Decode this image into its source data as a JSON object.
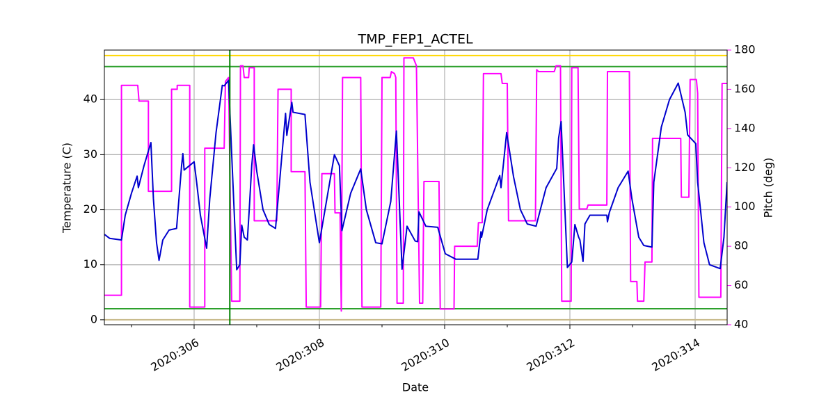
{
  "chart_data": {
    "type": "line",
    "title": "TMP_FEP1_ACTEL",
    "x_label": "Date",
    "y_label": "Temperature (C)",
    "y2_label": "Pitch (deg)",
    "xlim": [
      304.567,
      314.511
    ],
    "ylim": [
      -0.9,
      49
    ],
    "y2lim": [
      40,
      180
    ],
    "xticks": [
      {
        "value": 306,
        "label": "2020:306"
      },
      {
        "value": 308,
        "label": "2020:308"
      },
      {
        "value": 310,
        "label": "2020:310"
      },
      {
        "value": 312,
        "label": "2020:312"
      },
      {
        "value": 314,
        "label": "2020:314"
      }
    ],
    "xminorticks": [
      305,
      307,
      309,
      311,
      313
    ],
    "yticks": [
      0,
      10,
      20,
      30,
      40
    ],
    "y2ticks": [
      40,
      60,
      80,
      100,
      120,
      140,
      160,
      180
    ],
    "grid": true,
    "hlines": [
      {
        "value": 48,
        "color": "#ffd700"
      },
      {
        "value": 46,
        "color": "#2ca02c"
      },
      {
        "value": 2,
        "color": "#2ca02c"
      },
      {
        "value": 0,
        "color": "#c8b98a"
      }
    ],
    "vlines": [
      {
        "value": 306.57,
        "color": "#008000"
      }
    ],
    "series": [
      {
        "color": "#0000cd",
        "axis": "y",
        "x": [
          304.57,
          304.65,
          304.84,
          304.9,
          305.0,
          305.09,
          305.11,
          305.2,
          305.31,
          305.35,
          305.4,
          305.44,
          305.5,
          305.6,
          305.72,
          305.8,
          305.82,
          305.84,
          306.0,
          306.04,
          306.1,
          306.15,
          306.2,
          306.25,
          306.35,
          306.45,
          306.48,
          306.55,
          306.6,
          306.68,
          306.73,
          306.76,
          306.8,
          306.85,
          306.88,
          306.92,
          306.95,
          307.0,
          307.1,
          307.2,
          307.3,
          307.46,
          307.48,
          307.56,
          307.58,
          307.77,
          307.85,
          308.0,
          308.24,
          308.32,
          308.36,
          308.5,
          308.66,
          308.75,
          308.9,
          309.0,
          309.14,
          309.23,
          309.32,
          309.4,
          309.53,
          309.57,
          309.59,
          309.7,
          309.89,
          310.01,
          310.18,
          310.53,
          310.58,
          310.59,
          310.68,
          310.88,
          310.9,
          310.99,
          311.1,
          311.21,
          311.32,
          311.46,
          311.62,
          311.79,
          311.82,
          311.86,
          311.96,
          312.03,
          312.08,
          312.14,
          312.16,
          312.21,
          312.24,
          312.32,
          312.59,
          312.6,
          312.63,
          312.77,
          312.93,
          312.99,
          313.1,
          313.18,
          313.31,
          313.34,
          313.46,
          313.59,
          313.73,
          313.84,
          313.88,
          314.01,
          314.04,
          314.14,
          314.23,
          314.4,
          314.46,
          314.51
        ],
        "values": [
          15.5,
          14.8,
          14.5,
          19,
          23,
          26.1,
          24,
          28,
          32.2,
          22,
          14,
          10.8,
          14.5,
          16.3,
          16.6,
          28,
          30.2,
          27.2,
          28.7,
          25,
          19,
          16,
          13,
          22,
          34,
          42.6,
          42.5,
          43.5,
          30,
          9.1,
          10,
          17.2,
          15,
          14.5,
          20,
          28,
          31.8,
          27,
          20,
          17.3,
          16.6,
          37.5,
          33.5,
          39.5,
          37.7,
          37.3,
          25,
          14,
          30,
          28,
          16.2,
          23,
          27.4,
          20,
          14,
          13.8,
          21.5,
          34.3,
          9.2,
          17,
          14.3,
          14.2,
          19.6,
          17,
          16.8,
          12,
          11,
          11,
          16,
          15,
          20,
          26.2,
          24,
          34,
          26,
          20,
          17.4,
          17,
          24,
          27.5,
          33,
          36,
          9.5,
          10.5,
          17.3,
          15,
          14.5,
          10.6,
          17.4,
          19,
          19,
          17.8,
          19.5,
          24,
          27,
          22,
          15,
          13.5,
          13.2,
          25,
          35,
          40,
          43,
          37.7,
          33.6,
          32,
          25,
          14,
          10,
          9.3,
          15,
          25
        ]
      },
      {
        "color": "#ff00ff",
        "axis": "y2",
        "x": [
          304.57,
          304.84,
          304.84,
          305.1,
          305.12,
          305.27,
          305.27,
          305.64,
          305.64,
          305.73,
          305.73,
          305.93,
          305.93,
          306.17,
          306.17,
          306.48,
          306.5,
          306.55,
          306.6,
          306.73,
          306.74,
          306.78,
          306.8,
          306.87,
          306.88,
          306.96,
          306.96,
          307.32,
          307.34,
          307.55,
          307.55,
          307.77,
          307.79,
          308.02,
          308.04,
          308.24,
          308.25,
          308.33,
          308.35,
          308.37,
          308.42,
          308.66,
          308.68,
          308.98,
          309.0,
          309.13,
          309.15,
          309.2,
          309.22,
          309.24,
          309.34,
          309.35,
          309.5,
          309.55,
          309.6,
          309.65,
          309.67,
          309.91,
          309.93,
          310.15,
          310.16,
          310.52,
          310.54,
          310.6,
          310.62,
          310.9,
          310.92,
          311.0,
          311.02,
          311.45,
          311.47,
          311.5,
          311.75,
          311.78,
          311.85,
          311.87,
          312.02,
          312.03,
          312.13,
          312.15,
          312.27,
          312.29,
          312.59,
          312.6,
          312.95,
          312.97,
          313.07,
          313.08,
          313.18,
          313.2,
          313.31,
          313.32,
          313.77,
          313.78,
          313.9,
          313.92,
          314.02,
          314.04,
          314.06,
          314.41,
          314.43,
          314.51
        ],
        "values": [
          55,
          55,
          162,
          162,
          154,
          154,
          108,
          108,
          160,
          160,
          162,
          162,
          49,
          49,
          130,
          130,
          164,
          166,
          52,
          52,
          172,
          172,
          166,
          166,
          171,
          171,
          93,
          93,
          160,
          160,
          118,
          118,
          49,
          49,
          117,
          117,
          97,
          97,
          47,
          166,
          166,
          166,
          49,
          49,
          166,
          166,
          169,
          168,
          166,
          51,
          51,
          176,
          176,
          172,
          51,
          51,
          113,
          113,
          48,
          48,
          80,
          80,
          92,
          92,
          168,
          168,
          163,
          163,
          93,
          93,
          170,
          169,
          169,
          172,
          172,
          52,
          52,
          171,
          171,
          99,
          99,
          101,
          101,
          169,
          169,
          62,
          62,
          52,
          52,
          72,
          72,
          135,
          135,
          105,
          105,
          165,
          165,
          158,
          54,
          54,
          163,
          163
        ]
      }
    ]
  }
}
